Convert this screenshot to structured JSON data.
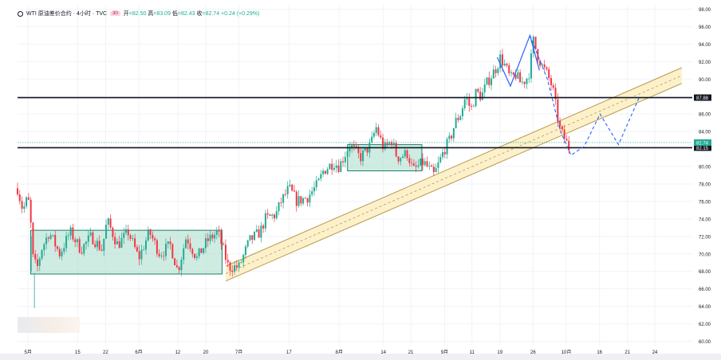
{
  "header": {
    "symbol": "WTI 原油差价合约 · 4小时 · TVC",
    "badge": "30",
    "open_label": "开",
    "open": "=82.50",
    "high_label": "高",
    "high": "=83.09",
    "low_label": "低",
    "low": "=82.43",
    "close_label": "收",
    "close": "=82.74",
    "change": "+0.24 (+0.29%)"
  },
  "colors": {
    "up": "#22ab94",
    "down": "#f23645",
    "box_fill": "#a8dccb",
    "box_stroke": "#1e7e6a",
    "channel_fill": "#fbeec2",
    "channel_stroke": "#b89a4c",
    "hline": "#131722",
    "price_line": "#2962ff",
    "last_price": "#22ab94"
  },
  "chart_data": {
    "type": "candlestick",
    "y_axis": {
      "position": "right",
      "ylim": [
        59.5,
        98.5
      ],
      "ticks": [
        "98.00",
        "96.00",
        "94.00",
        "92.00",
        "90.00",
        "88.00",
        "86.00",
        "84.00",
        "82.00",
        "80.00",
        "78.00",
        "76.00",
        "74.00",
        "72.00",
        "70.00",
        "68.00",
        "66.00",
        "64.00",
        "62.00",
        "60.00"
      ]
    },
    "x_axis": {
      "labels": [
        {
          "t": 0.0,
          "text": "5月"
        },
        {
          "t": 9.4,
          "text": "15"
        },
        {
          "t": 14.7,
          "text": "22"
        },
        {
          "t": 21.0,
          "text": "6月"
        },
        {
          "t": 28.4,
          "text": "12"
        },
        {
          "t": 33.7,
          "text": "20"
        },
        {
          "t": 40.0,
          "text": "7月"
        },
        {
          "t": 49.5,
          "text": "17"
        },
        {
          "t": 59.0,
          "text": "8月"
        },
        {
          "t": 67.4,
          "text": "14"
        },
        {
          "t": 72.6,
          "text": "21"
        },
        {
          "t": 79.0,
          "text": "9月"
        },
        {
          "t": 84.2,
          "text": "11"
        },
        {
          "t": 89.5,
          "text": "19"
        },
        {
          "t": 95.8,
          "text": "26"
        },
        {
          "t": 102.1,
          "text": "10月"
        },
        {
          "t": 108.4,
          "text": "16"
        },
        {
          "t": 113.7,
          "text": "21"
        },
        {
          "t": 118.9,
          "text": "24"
        }
      ],
      "range": [
        -2,
        126
      ]
    },
    "path": [
      [
        -2,
        77.5
      ],
      [
        -1,
        75
      ],
      [
        0,
        76.5
      ],
      [
        0.5,
        73.5
      ],
      [
        1,
        69
      ],
      [
        1.8,
        68.5
      ],
      [
        2.5,
        70.5
      ],
      [
        4,
        72.5
      ],
      [
        6,
        70
      ],
      [
        8,
        72.5
      ],
      [
        10,
        70.5
      ],
      [
        12,
        72
      ],
      [
        14,
        70.5
      ],
      [
        15,
        73.8
      ],
      [
        17,
        71
      ],
      [
        19,
        72.5
      ],
      [
        21,
        69.5
      ],
      [
        23,
        72.5
      ],
      [
        25,
        70
      ],
      [
        27,
        71
      ],
      [
        28.4,
        68
      ],
      [
        30,
        72
      ],
      [
        32,
        69.5
      ],
      [
        34,
        71.5
      ],
      [
        36,
        72.5
      ],
      [
        38,
        68.5
      ],
      [
        40,
        68.5
      ],
      [
        42,
        71.5
      ],
      [
        44,
        72.5
      ],
      [
        45,
        74
      ],
      [
        47,
        74.5
      ],
      [
        48,
        76
      ],
      [
        49.5,
        77.5
      ],
      [
        51,
        76
      ],
      [
        53,
        76.5
      ],
      [
        55,
        78
      ],
      [
        56,
        79.5
      ],
      [
        58,
        80.5
      ],
      [
        59,
        80
      ],
      [
        61,
        82.5
      ],
      [
        63,
        81
      ],
      [
        65,
        82.5
      ],
      [
        66,
        84.5
      ],
      [
        67.5,
        82
      ],
      [
        69,
        83
      ],
      [
        70,
        81
      ],
      [
        72,
        81.5
      ],
      [
        73,
        79.5
      ],
      [
        75,
        80.5
      ],
      [
        77,
        79
      ],
      [
        78,
        80.5
      ],
      [
        79,
        82
      ],
      [
        80,
        83
      ],
      [
        81,
        85
      ],
      [
        82,
        86
      ],
      [
        83,
        88
      ],
      [
        84,
        86.5
      ],
      [
        85,
        88.5
      ],
      [
        86,
        88
      ],
      [
        87,
        89.5
      ],
      [
        88,
        90.5
      ],
      [
        89,
        91.5
      ],
      [
        89.5,
        92.5
      ],
      [
        90.5,
        91.5
      ],
      [
        91.5,
        90
      ],
      [
        92.5,
        90.5
      ],
      [
        93.5,
        89.5
      ],
      [
        94.5,
        90
      ],
      [
        95.2,
        91
      ],
      [
        95.8,
        94.5
      ],
      [
        96.5,
        93
      ],
      [
        97.5,
        91.5
      ],
      [
        98.5,
        90.5
      ],
      [
        99.5,
        89
      ],
      [
        100.5,
        85.5
      ],
      [
        101,
        84
      ],
      [
        102,
        83
      ],
      [
        102.5,
        82
      ],
      [
        103,
        82.74
      ]
    ],
    "scatter_wicks": [
      [
        1.2,
        63.8
      ],
      [
        0.6,
        68
      ]
    ],
    "zones": [
      {
        "x": [
          0.5,
          36.8
        ],
        "y": [
          67.7,
          72.7
        ]
      },
      {
        "x": [
          60.6,
          74.7
        ],
        "y": [
          79.5,
          82.5
        ]
      }
    ],
    "channel": {
      "lower": [
        [
          37.5,
          66.9
        ],
        [
          124,
          89.5
        ]
      ],
      "upper": [
        [
          37.5,
          68.6
        ],
        [
          124,
          91.3
        ]
      ]
    },
    "horizontal_lines": [
      {
        "y": 87.88,
        "label": "87.88"
      },
      {
        "y": 82.15,
        "label": "82.15"
      }
    ],
    "last_price": {
      "y": 82.74,
      "label": "82.74"
    },
    "projection_solid": [
      [
        89,
        92.5
      ],
      [
        91.5,
        89.2
      ],
      [
        95.2,
        95
      ],
      [
        97,
        91
      ]
    ],
    "projection_dashed": [
      [
        95.2,
        95
      ],
      [
        98.5,
        90
      ],
      [
        101,
        84
      ],
      [
        103,
        81.3
      ],
      [
        105.5,
        82.3
      ],
      [
        108.5,
        86
      ],
      [
        112,
        82.5
      ],
      [
        116,
        88
      ]
    ]
  }
}
